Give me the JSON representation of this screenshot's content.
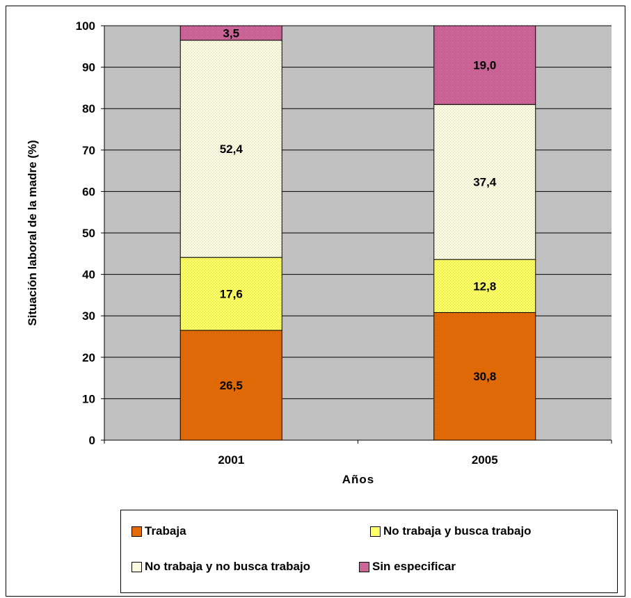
{
  "chart_data": {
    "type": "bar",
    "stacked": true,
    "categories": [
      "2001",
      "2005"
    ],
    "series": [
      {
        "name": "Trabaja",
        "values": [
          26.5,
          30.8
        ],
        "labels": [
          "26,5",
          "30,8"
        ],
        "color": "#e36c0a"
      },
      {
        "name": "No trabaja y busca trabajo",
        "values": [
          17.6,
          12.8
        ],
        "labels": [
          "17,6",
          "12,8"
        ],
        "color": "#ffff66"
      },
      {
        "name": "No trabaja y no busca trabajo",
        "values": [
          52.4,
          37.4
        ],
        "labels": [
          "52,4",
          "37,4"
        ],
        "color": "#fbfbe2"
      },
      {
        "name": "Sin especificar",
        "values": [
          3.5,
          19.0
        ],
        "labels": [
          "3,5",
          "19,0"
        ],
        "color": "#cc6699"
      }
    ],
    "xlabel": "Años",
    "ylabel": "Situación laboral de la madre (%)",
    "ylim": [
      0,
      100
    ],
    "yticks": [
      0,
      10,
      20,
      30,
      40,
      50,
      60,
      70,
      80,
      90,
      100
    ],
    "grid": true,
    "plot_background": "#c0c0c0",
    "legend_position": "bottom"
  }
}
